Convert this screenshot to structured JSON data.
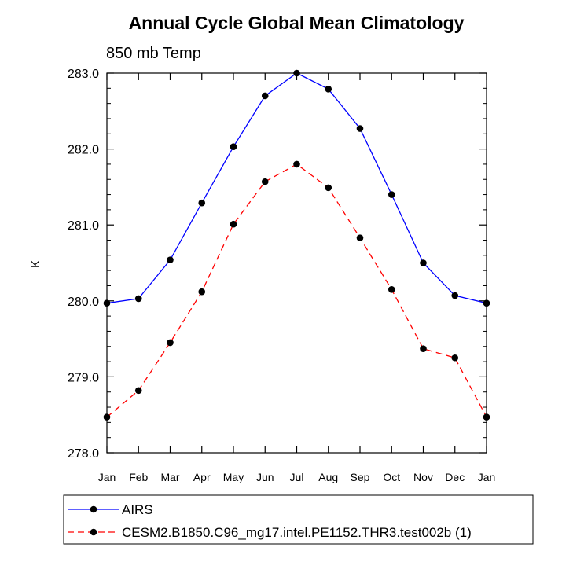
{
  "chart_data": {
    "type": "line",
    "title": "Annual Cycle Global Mean Climatology",
    "subtitle": "850 mb Temp",
    "ylabel": "K",
    "xlabel": "",
    "categories": [
      "Jan",
      "Feb",
      "Mar",
      "Apr",
      "May",
      "Jun",
      "Jul",
      "Aug",
      "Sep",
      "Oct",
      "Nov",
      "Dec",
      "Jan"
    ],
    "ylim": [
      278.0,
      283.0
    ],
    "yticks": [
      "278.0",
      "279.0",
      "280.0",
      "281.0",
      "282.0",
      "283.0"
    ],
    "grid": false,
    "legend_position": "bottom",
    "series": [
      {
        "name": "AIRS",
        "color": "#0000ff",
        "dash": "solid",
        "marker": "circle",
        "values": [
          279.97,
          280.03,
          280.54,
          281.29,
          282.03,
          282.7,
          283.0,
          282.79,
          282.27,
          281.4,
          280.5,
          280.07,
          279.97
        ]
      },
      {
        "name": "CESM2.B1850.C96_mg17.intel.PE1152.THR3.test002b (1)",
        "color": "#ff0000",
        "dash": "dashed",
        "marker": "circle",
        "values": [
          278.47,
          278.82,
          279.45,
          280.12,
          281.01,
          281.57,
          281.8,
          281.49,
          280.83,
          280.15,
          279.37,
          279.25,
          278.47
        ]
      }
    ]
  }
}
